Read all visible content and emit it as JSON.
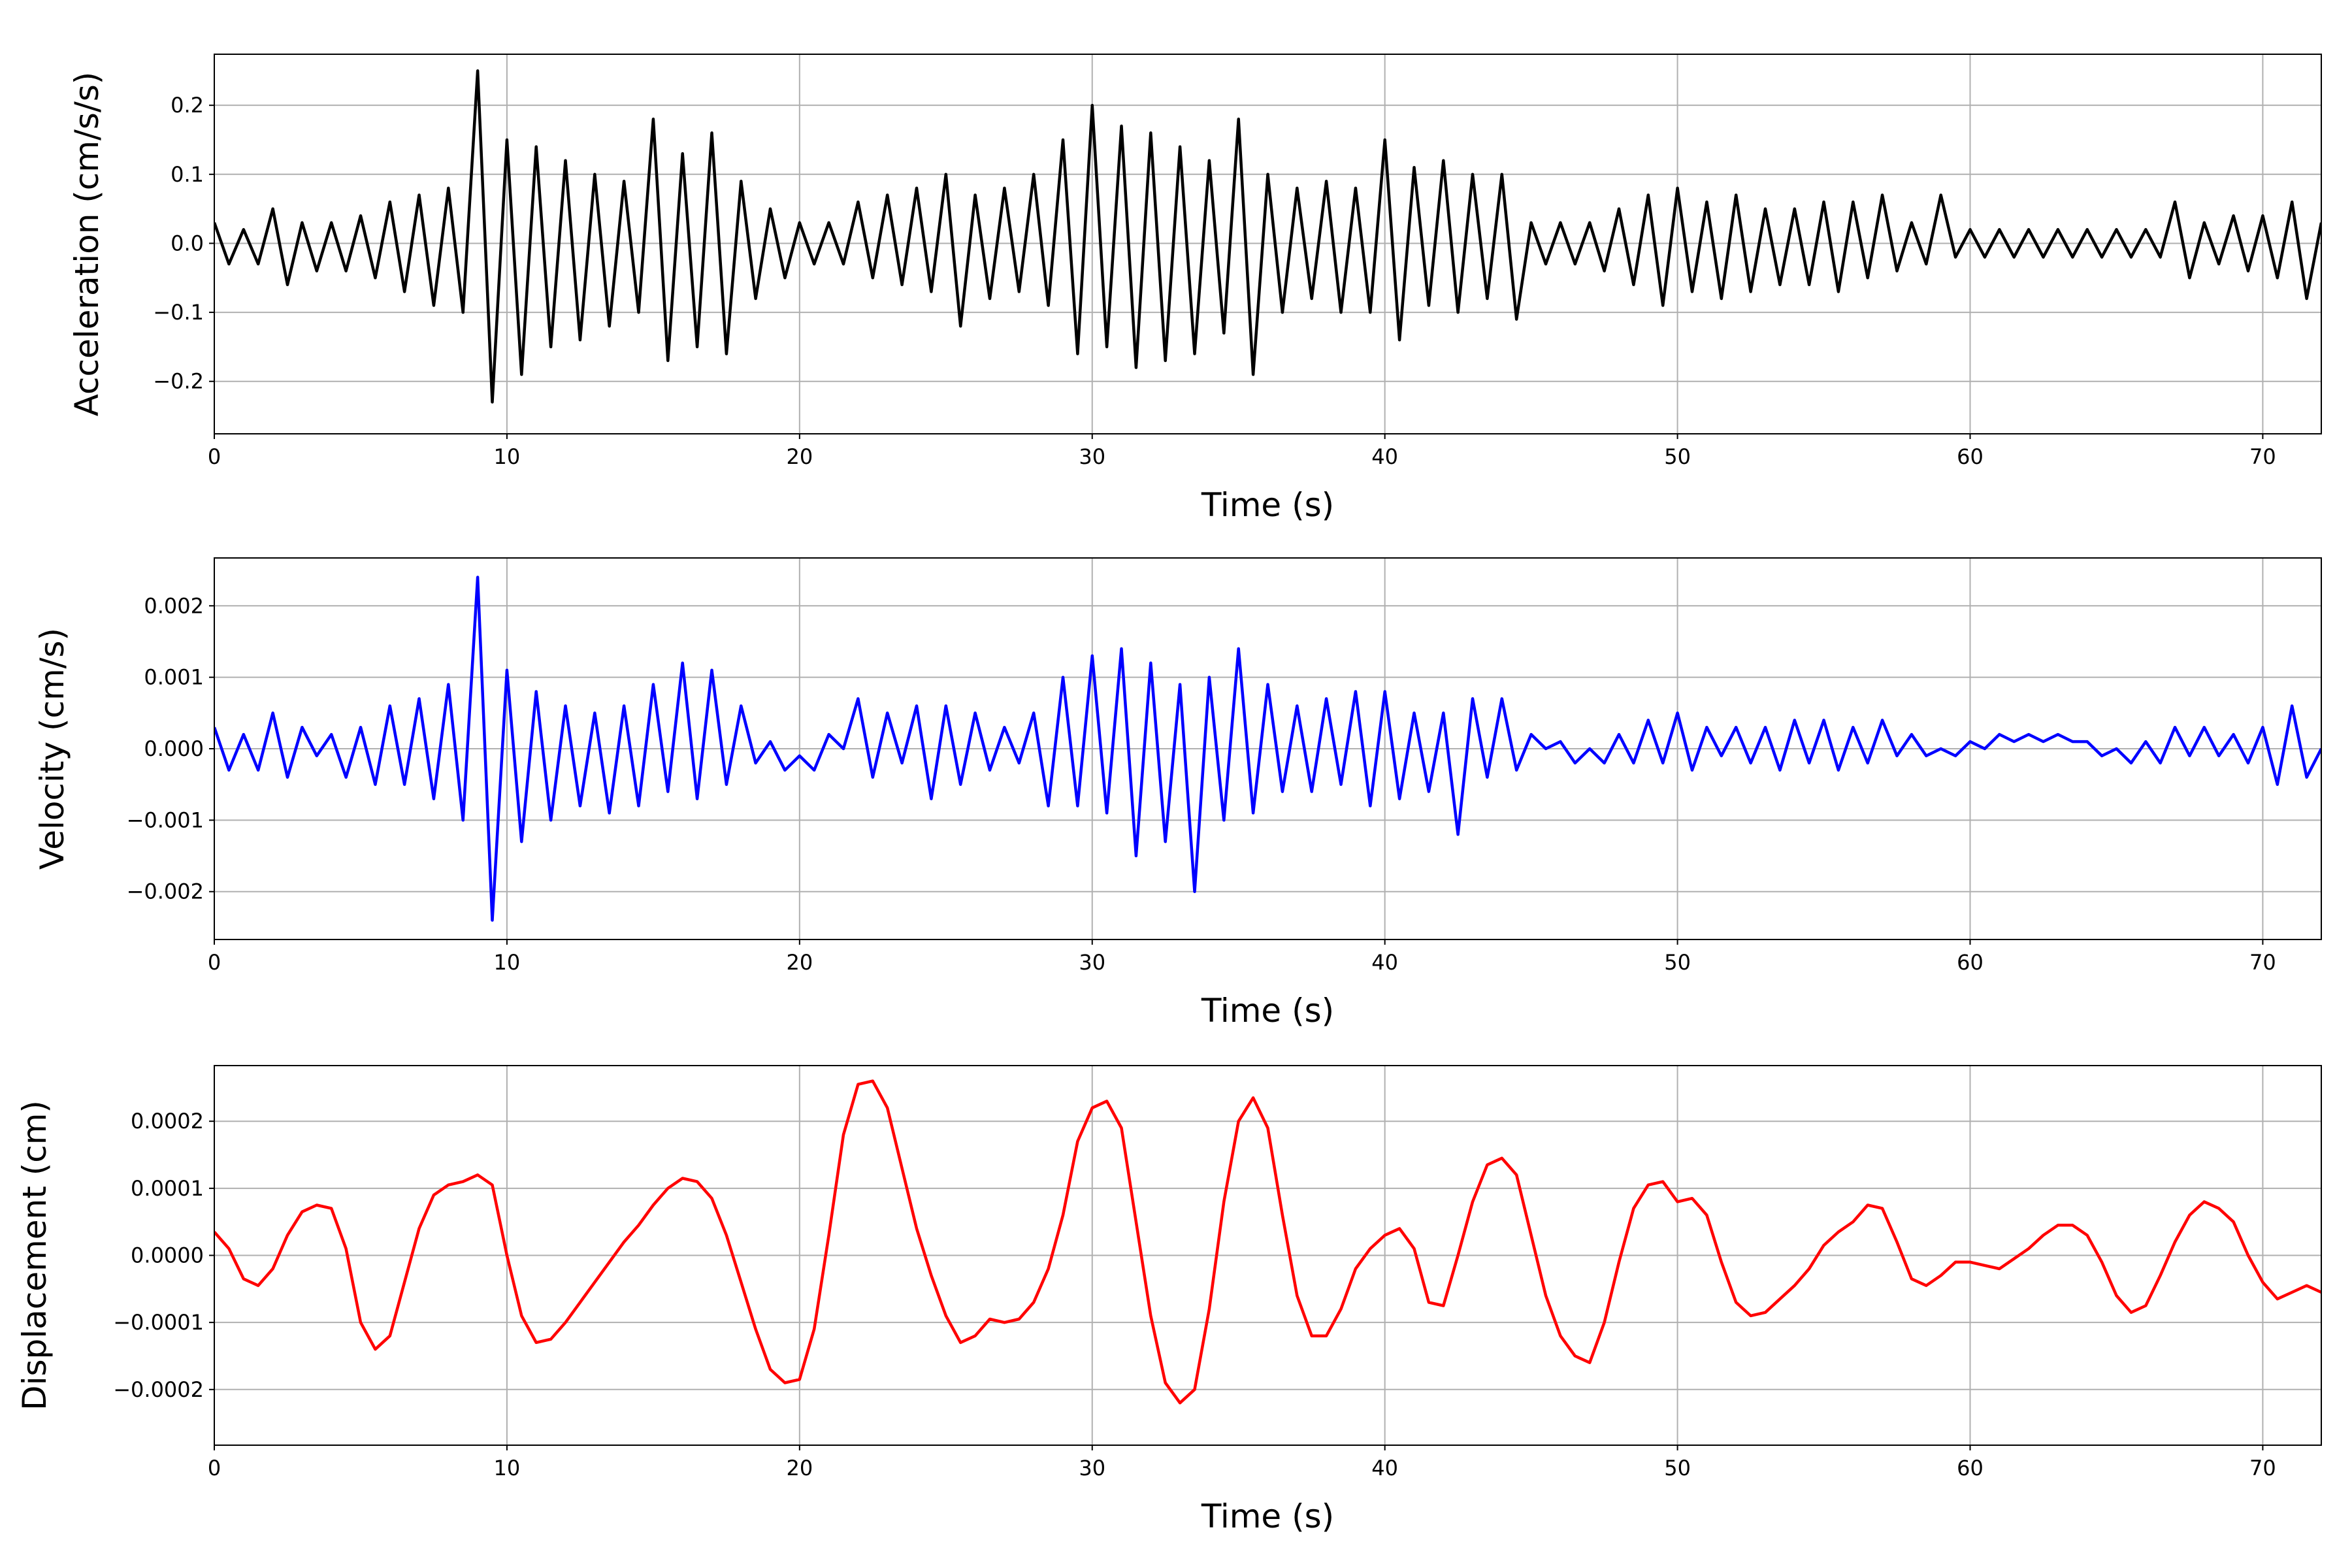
{
  "chart_data": [
    {
      "type": "line",
      "xlabel": "Time (s)",
      "ylabel": "Acceleration (cm/s/s)",
      "color": "#000000",
      "grid": true,
      "xlim": [
        0,
        72
      ],
      "xticks": [
        0,
        10,
        20,
        30,
        40,
        50,
        60,
        70
      ],
      "ylim": [
        -0.276,
        0.274
      ],
      "yticks": [
        {
          "value": -0.2,
          "label": "−0.2"
        },
        {
          "value": -0.1,
          "label": "−0.1"
        },
        {
          "value": 0,
          "label": "0.0"
        },
        {
          "value": 0.1,
          "label": "0.1"
        },
        0.2
      ],
      "x": [
        0,
        0.5,
        1,
        1.5,
        2,
        2.5,
        3,
        3.5,
        4,
        4.5,
        5,
        5.5,
        6,
        6.5,
        7,
        7.5,
        8,
        8.5,
        9,
        9.5,
        10,
        10.5,
        11,
        11.5,
        12,
        12.5,
        13,
        13.5,
        14,
        14.5,
        15,
        15.5,
        16,
        16.5,
        17,
        17.5,
        18,
        18.5,
        19,
        19.5,
        20,
        20.5,
        21,
        21.5,
        22,
        22.5,
        23,
        23.5,
        24,
        24.5,
        25,
        25.5,
        26,
        26.5,
        27,
        27.5,
        28,
        28.5,
        29,
        29.5,
        30,
        30.5,
        31,
        31.5,
        32,
        32.5,
        33,
        33.5,
        34,
        34.5,
        35,
        35.5,
        36,
        36.5,
        37,
        37.5,
        38,
        38.5,
        39,
        39.5,
        40,
        40.5,
        41,
        41.5,
        42,
        42.5,
        43,
        43.5,
        44,
        44.5,
        45,
        45.5,
        46,
        46.5,
        47,
        47.5,
        48,
        48.5,
        49,
        49.5,
        50,
        50.5,
        51,
        51.5,
        52,
        52.5,
        53,
        53.5,
        54,
        54.5,
        55,
        55.5,
        56,
        56.5,
        57,
        57.5,
        58,
        58.5,
        59,
        59.5,
        60,
        60.5,
        61,
        61.5,
        62,
        62.5,
        63,
        63.5,
        64,
        64.5,
        65,
        65.5,
        66,
        66.5,
        67,
        67.5,
        68,
        68.5,
        69,
        69.5,
        70,
        70.5,
        71,
        71.5,
        72
      ],
      "values": [
        0.03,
        -0.03,
        0.02,
        -0.03,
        0.05,
        -0.06,
        0.03,
        -0.04,
        0.03,
        -0.04,
        0.04,
        -0.05,
        0.06,
        -0.07,
        0.07,
        -0.09,
        0.08,
        -0.1,
        0.25,
        -0.23,
        0.15,
        -0.19,
        0.14,
        -0.15,
        0.12,
        -0.14,
        0.1,
        -0.12,
        0.09,
        -0.1,
        0.18,
        -0.17,
        0.13,
        -0.15,
        0.16,
        -0.16,
        0.09,
        -0.08,
        0.05,
        -0.05,
        0.03,
        -0.03,
        0.03,
        -0.03,
        0.06,
        -0.05,
        0.07,
        -0.06,
        0.08,
        -0.07,
        0.1,
        -0.12,
        0.07,
        -0.08,
        0.08,
        -0.07,
        0.1,
        -0.09,
        0.15,
        -0.16,
        0.2,
        -0.15,
        0.17,
        -0.18,
        0.16,
        -0.17,
        0.14,
        -0.16,
        0.12,
        -0.13,
        0.18,
        -0.19,
        0.1,
        -0.1,
        0.08,
        -0.08,
        0.09,
        -0.1,
        0.08,
        -0.1,
        0.15,
        -0.14,
        0.11,
        -0.09,
        0.12,
        -0.1,
        0.1,
        -0.08,
        0.1,
        -0.11,
        0.03,
        -0.03,
        0.03,
        -0.03,
        0.03,
        -0.04,
        0.05,
        -0.06,
        0.07,
        -0.09,
        0.08,
        -0.07,
        0.06,
        -0.08,
        0.07,
        -0.07,
        0.05,
        -0.06,
        0.05,
        -0.06,
        0.06,
        -0.07,
        0.06,
        -0.05,
        0.07,
        -0.04,
        0.03,
        -0.03,
        0.07,
        -0.02,
        0.02,
        -0.02,
        0.02,
        -0.02,
        0.02,
        -0.02,
        0.02,
        -0.02,
        0.02,
        -0.02,
        0.02,
        -0.02,
        0.02,
        -0.02,
        0.06,
        -0.05,
        0.03,
        -0.03,
        0.04,
        -0.04,
        0.04,
        -0.05,
        0.06,
        -0.08,
        0.03
      ]
    },
    {
      "type": "line",
      "xlabel": "Time (s)",
      "ylabel": "Velocity (cm/s)",
      "color": "#0000ff",
      "grid": true,
      "xlim": [
        0,
        72
      ],
      "xticks": [
        0,
        10,
        20,
        30,
        40,
        50,
        60,
        70
      ],
      "ylim": [
        -0.00267,
        0.00267
      ],
      "yticks": [
        {
          "value": -0.002,
          "label": "−0.002"
        },
        {
          "value": -0.001,
          "label": "−0.001"
        },
        {
          "value": 0,
          "label": "0.000"
        },
        0.001,
        0.002
      ],
      "x": [
        0,
        0.5,
        1,
        1.5,
        2,
        2.5,
        3,
        3.5,
        4,
        4.5,
        5,
        5.5,
        6,
        6.5,
        7,
        7.5,
        8,
        8.5,
        9,
        9.5,
        10,
        10.5,
        11,
        11.5,
        12,
        12.5,
        13,
        13.5,
        14,
        14.5,
        15,
        15.5,
        16,
        16.5,
        17,
        17.5,
        18,
        18.5,
        19,
        19.5,
        20,
        20.5,
        21,
        21.5,
        22,
        22.5,
        23,
        23.5,
        24,
        24.5,
        25,
        25.5,
        26,
        26.5,
        27,
        27.5,
        28,
        28.5,
        29,
        29.5,
        30,
        30.5,
        31,
        31.5,
        32,
        32.5,
        33,
        33.5,
        34,
        34.5,
        35,
        35.5,
        36,
        36.5,
        37,
        37.5,
        38,
        38.5,
        39,
        39.5,
        40,
        40.5,
        41,
        41.5,
        42,
        42.5,
        43,
        43.5,
        44,
        44.5,
        45,
        45.5,
        46,
        46.5,
        47,
        47.5,
        48,
        48.5,
        49,
        49.5,
        50,
        50.5,
        51,
        51.5,
        52,
        52.5,
        53,
        53.5,
        54,
        54.5,
        55,
        55.5,
        56,
        56.5,
        57,
        57.5,
        58,
        58.5,
        59,
        59.5,
        60,
        60.5,
        61,
        61.5,
        62,
        62.5,
        63,
        63.5,
        64,
        64.5,
        65,
        65.5,
        66,
        66.5,
        67,
        67.5,
        68,
        68.5,
        69,
        69.5,
        70,
        70.5,
        71,
        71.5,
        72
      ],
      "values": [
        0.0003,
        -0.0003,
        0.0002,
        -0.0003,
        0.0005,
        -0.0004,
        0.0003,
        -0.0001,
        0.0002,
        -0.0004,
        0.0003,
        -0.0005,
        0.0006,
        -0.0005,
        0.0007,
        -0.0007,
        0.0009,
        -0.001,
        0.0024,
        -0.0024,
        0.0011,
        -0.0013,
        0.0008,
        -0.001,
        0.0006,
        -0.0008,
        0.0005,
        -0.0009,
        0.0006,
        -0.0008,
        0.0009,
        -0.0006,
        0.0012,
        -0.0007,
        0.0011,
        -0.0005,
        0.0006,
        -0.0002,
        0.0001,
        -0.0003,
        -0.0001,
        -0.0003,
        0.0002,
        0,
        0.0007,
        -0.0004,
        0.0005,
        -0.0002,
        0.0006,
        -0.0007,
        0.0006,
        -0.0005,
        0.0005,
        -0.0003,
        0.0003,
        -0.0002,
        0.0005,
        -0.0008,
        0.001,
        -0.0008,
        0.0013,
        -0.0009,
        0.0014,
        -0.0015,
        0.0012,
        -0.0013,
        0.0009,
        -0.002,
        0.001,
        -0.001,
        0.0014,
        -0.0009,
        0.0009,
        -0.0006,
        0.0006,
        -0.0006,
        0.0007,
        -0.0005,
        0.0008,
        -0.0008,
        0.0008,
        -0.0007,
        0.0005,
        -0.0006,
        0.0005,
        -0.0012,
        0.0007,
        -0.0004,
        0.0007,
        -0.0003,
        0.0002,
        0,
        0.0001,
        -0.0002,
        0,
        -0.0002,
        0.0002,
        -0.0002,
        0.0004,
        -0.0002,
        0.0005,
        -0.0003,
        0.0003,
        -0.0001,
        0.0003,
        -0.0002,
        0.0003,
        -0.0003,
        0.0004,
        -0.0002,
        0.0004,
        -0.0003,
        0.0003,
        -0.0002,
        0.0004,
        -0.0001,
        0.0002,
        -0.0001,
        0,
        -0.0001,
        0.0001,
        0,
        0.0002,
        0.0001,
        0.0002,
        0.0001,
        0.0002,
        0.0001,
        0.0001,
        -0.0001,
        0,
        -0.0002,
        0.0001,
        -0.0002,
        0.0003,
        -0.0001,
        0.0003,
        -0.0001,
        0.0002,
        -0.0002,
        0.0003,
        -0.0005,
        0.0006,
        -0.0004,
        0
      ]
    },
    {
      "type": "line",
      "xlabel": "Time (s)",
      "ylabel": "Displacement (cm)",
      "color": "#ff0000",
      "grid": true,
      "xlim": [
        0,
        72
      ],
      "xticks": [
        0,
        10,
        20,
        30,
        40,
        50,
        60,
        70
      ],
      "ylim": [
        -0.000283,
        0.000283
      ],
      "yticks": [
        {
          "value": -0.0002,
          "label": "−0.0002"
        },
        {
          "value": -0.0001,
          "label": "−0.0001"
        },
        {
          "value": 0,
          "label": "0.0000"
        },
        {
          "value": 0.0001,
          "label": "0.0001"
        },
        {
          "value": 0.0002,
          "label": "0.0002"
        }
      ],
      "x": [
        0,
        0.5,
        1,
        1.5,
        2,
        2.5,
        3,
        3.5,
        4,
        4.5,
        5,
        5.5,
        6,
        6.5,
        7,
        7.5,
        8,
        8.5,
        9,
        9.5,
        10,
        10.5,
        11,
        11.5,
        12,
        12.5,
        13,
        13.5,
        14,
        14.5,
        15,
        15.5,
        16,
        16.5,
        17,
        17.5,
        18,
        18.5,
        19,
        19.5,
        20,
        20.5,
        21,
        21.5,
        22,
        22.5,
        23,
        23.5,
        24,
        24.5,
        25,
        25.5,
        26,
        26.5,
        27,
        27.5,
        28,
        28.5,
        29,
        29.5,
        30,
        30.5,
        31,
        31.5,
        32,
        32.5,
        33,
        33.5,
        34,
        34.5,
        35,
        35.5,
        36,
        36.5,
        37,
        37.5,
        38,
        38.5,
        39,
        39.5,
        40,
        40.5,
        41,
        41.5,
        42,
        42.5,
        43,
        43.5,
        44,
        44.5,
        45,
        45.5,
        46,
        46.5,
        47,
        47.5,
        48,
        48.5,
        49,
        49.5,
        50,
        50.5,
        51,
        51.5,
        52,
        52.5,
        53,
        53.5,
        54,
        54.5,
        55,
        55.5,
        56,
        56.5,
        57,
        57.5,
        58,
        58.5,
        59,
        59.5,
        60,
        60.5,
        61,
        61.5,
        62,
        62.5,
        63,
        63.5,
        64,
        64.5,
        65,
        65.5,
        66,
        66.5,
        67,
        67.5,
        68,
        68.5,
        69,
        69.5,
        70,
        70.5,
        71,
        71.5,
        72
      ],
      "values": [
        3.5e-05,
        1e-05,
        -3.5e-05,
        -4.5e-05,
        -2e-05,
        3e-05,
        6.5e-05,
        7.5e-05,
        7e-05,
        1e-05,
        -0.0001,
        -0.00014,
        -0.00012,
        -4e-05,
        4e-05,
        9e-05,
        0.000105,
        0.00011,
        0.00012,
        0.000105,
        0,
        -9e-05,
        -0.00013,
        -0.000125,
        -0.0001,
        -7e-05,
        -4e-05,
        -1e-05,
        2e-05,
        4.5e-05,
        7.5e-05,
        0.0001,
        0.000115,
        0.00011,
        8.5e-05,
        3e-05,
        -4e-05,
        -0.00011,
        -0.00017,
        -0.00019,
        -0.000185,
        -0.00011,
        3e-05,
        0.00018,
        0.000255,
        0.00026,
        0.00022,
        0.00013,
        4e-05,
        -3e-05,
        -9e-05,
        -0.00013,
        -0.00012,
        -9.5e-05,
        -0.0001,
        -9.5e-05,
        -7e-05,
        -2e-05,
        6e-05,
        0.00017,
        0.00022,
        0.00023,
        0.00019,
        5e-05,
        -9e-05,
        -0.00019,
        -0.00022,
        -0.0002,
        -8e-05,
        8e-05,
        0.0002,
        0.000235,
        0.00019,
        6e-05,
        -6e-05,
        -0.00012,
        -0.00012,
        -8e-05,
        -2e-05,
        1e-05,
        3e-05,
        4e-05,
        1e-05,
        -7e-05,
        -7.5e-05,
        0,
        8e-05,
        0.000135,
        0.000145,
        0.00012,
        3e-05,
        -6e-05,
        -0.00012,
        -0.00015,
        -0.00016,
        -0.0001,
        -1e-05,
        7e-05,
        0.000105,
        0.00011,
        8e-05,
        8.5e-05,
        6e-05,
        -1e-05,
        -7e-05,
        -9e-05,
        -8.5e-05,
        -6.5e-05,
        -4.5e-05,
        -2e-05,
        1.5e-05,
        3.5e-05,
        5e-05,
        7.5e-05,
        7e-05,
        2e-05,
        -3.5e-05,
        -4.5e-05,
        -3e-05,
        -1e-05,
        -1e-05,
        -1.5e-05,
        -2e-05,
        -5e-06,
        1e-05,
        3e-05,
        4.5e-05,
        4.5e-05,
        3e-05,
        -1e-05,
        -6e-05,
        -8.5e-05,
        -7.5e-05,
        -3e-05,
        2e-05,
        6e-05,
        8e-05,
        7e-05,
        5e-05,
        0,
        -4e-05,
        -6.5e-05,
        -5.5e-05,
        -4.5e-05,
        -5.5e-05
      ]
    }
  ]
}
